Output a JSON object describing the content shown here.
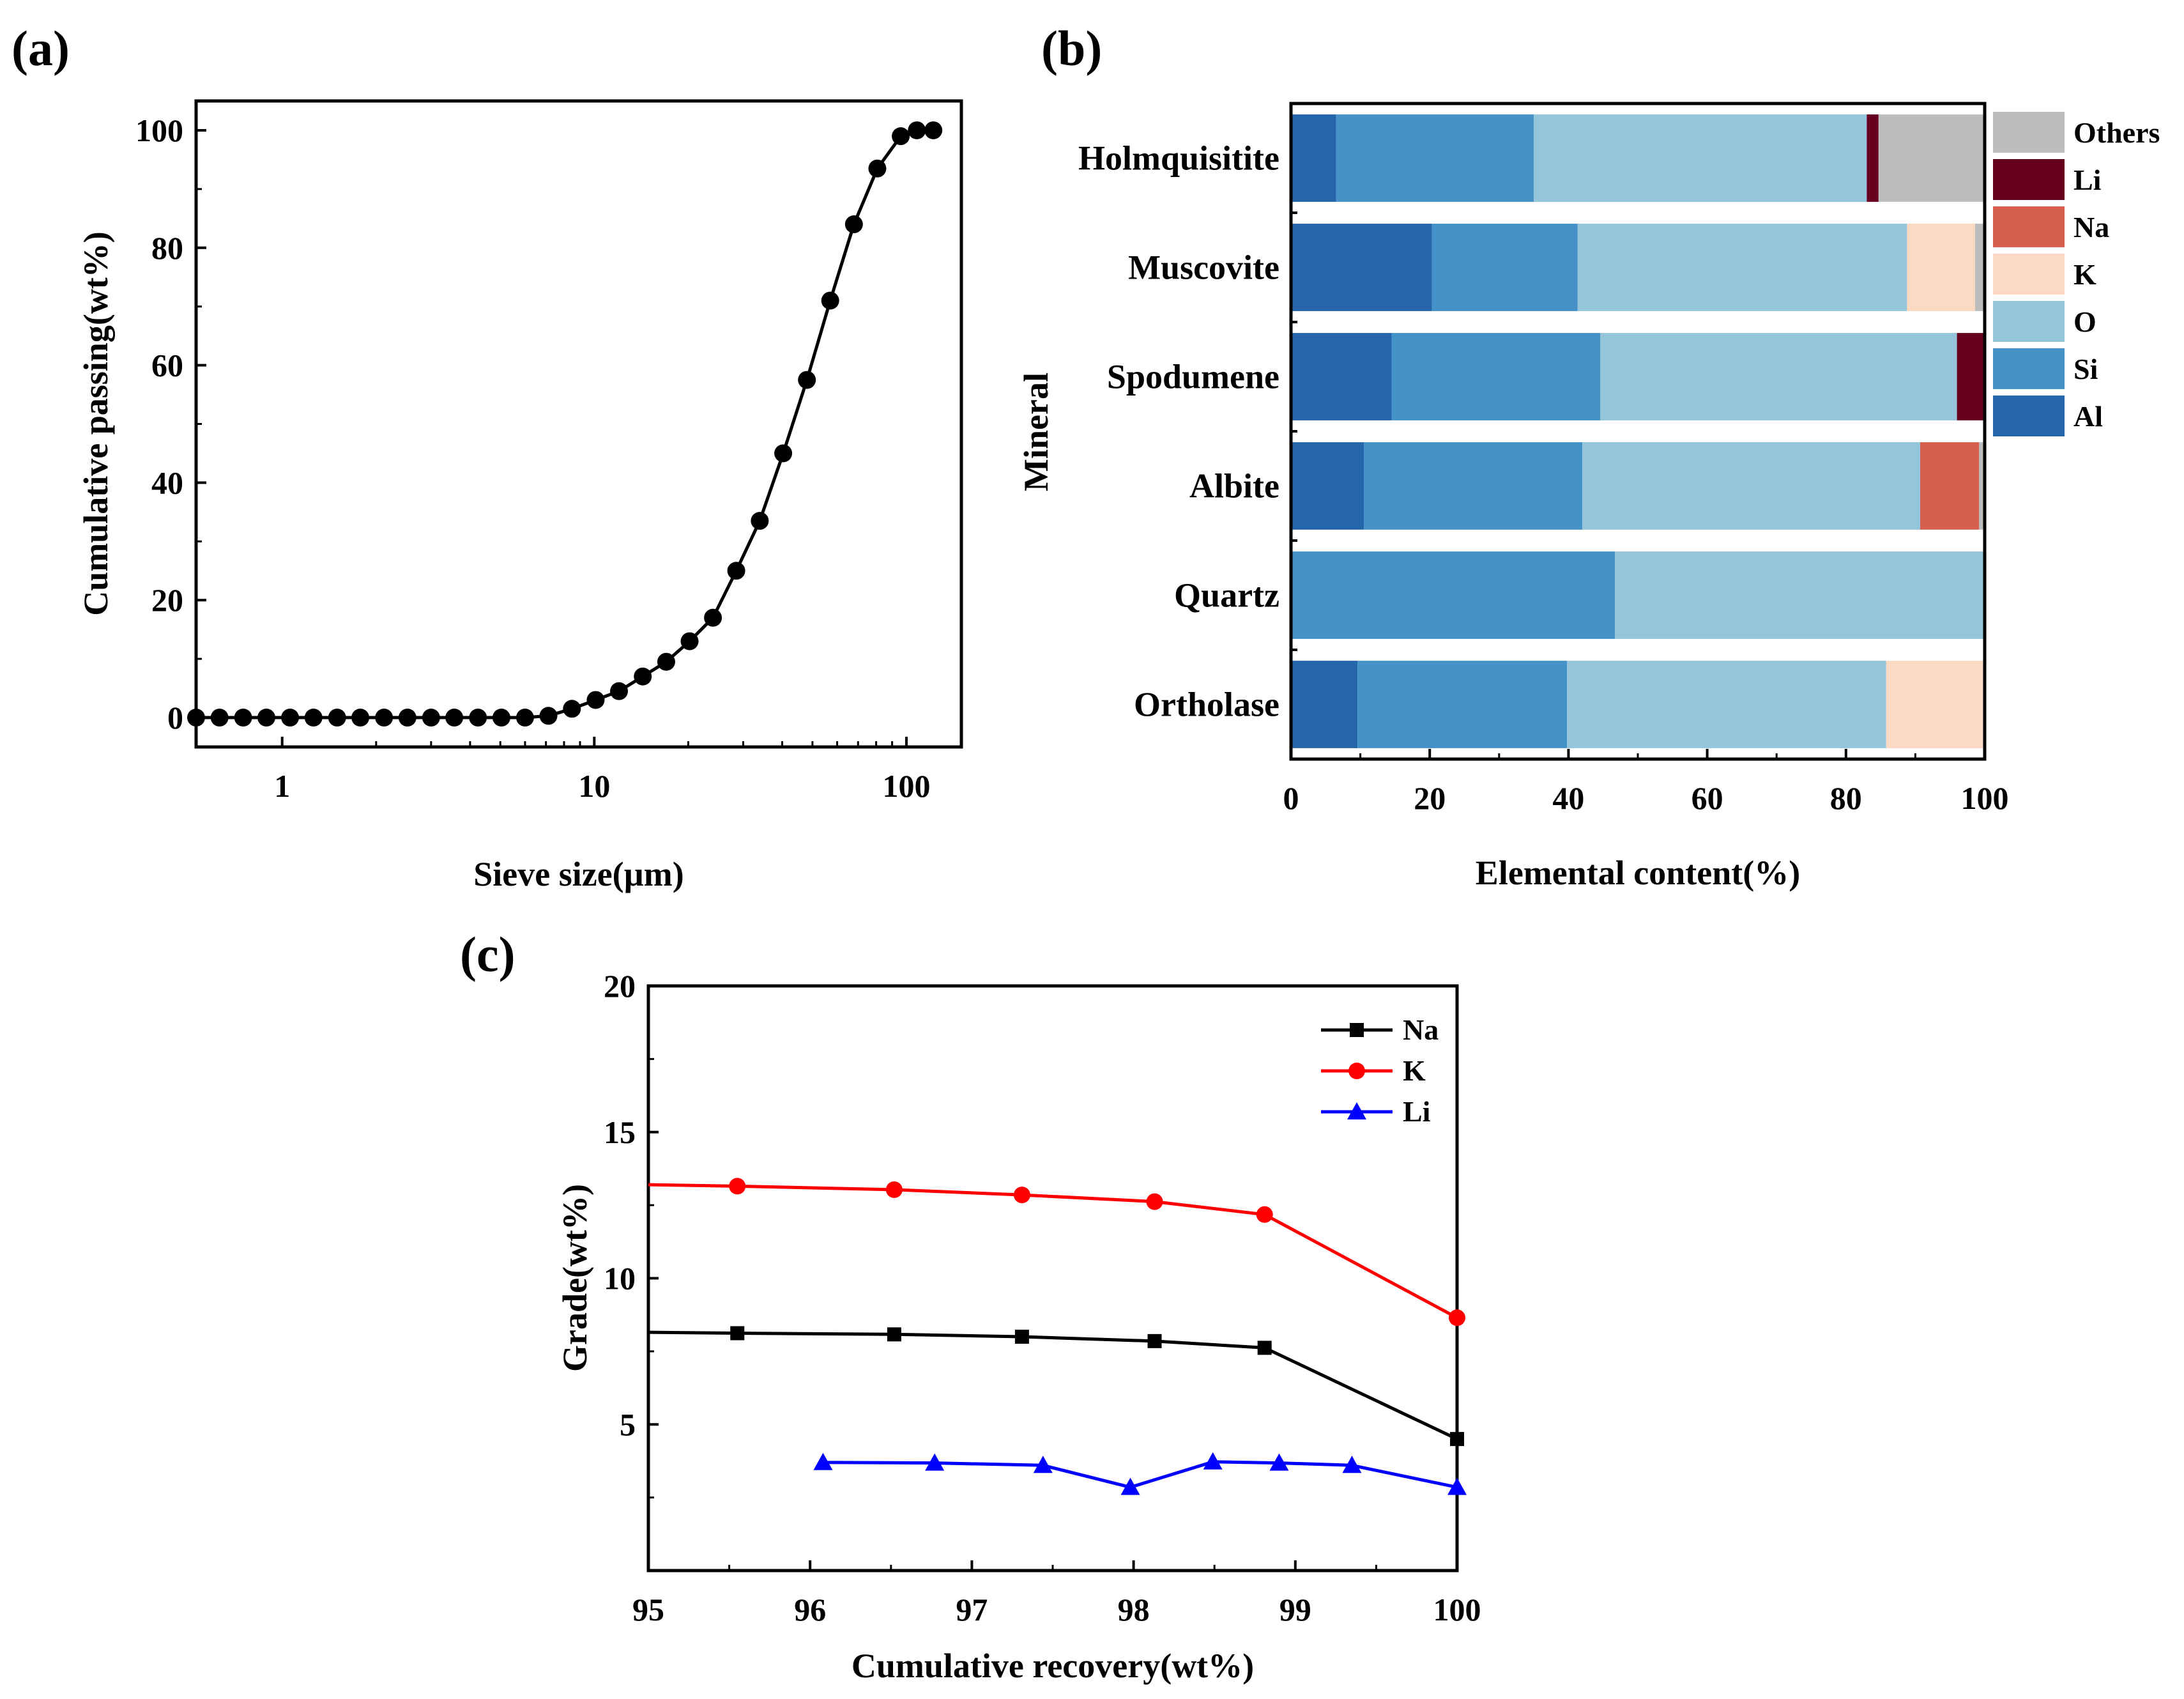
{
  "panels": {
    "a": "(a)",
    "b": "(b)",
    "c": "(c)"
  },
  "chart_data": [
    {
      "id": "a",
      "type": "line",
      "xscale": "log",
      "title": "",
      "xlabel": "Sieve size(µm)",
      "ylabel": "Cumulative passing(wt%)",
      "xlim": [
        0.53,
        150
      ],
      "ylim": [
        -5,
        105
      ],
      "xticks": [
        1,
        10,
        100
      ],
      "xtick_labels": [
        "1",
        "10",
        "100"
      ],
      "yticks": [
        0,
        20,
        40,
        60,
        80,
        100
      ],
      "ytick_labels": [
        "0",
        "20",
        "40",
        "60",
        "80",
        "100"
      ],
      "color": "#000000",
      "x": [
        0.53,
        0.63,
        0.75,
        0.89,
        1.06,
        1.26,
        1.5,
        1.78,
        2.12,
        2.52,
        3.0,
        3.56,
        4.24,
        5.04,
        6.0,
        7.13,
        8.48,
        10.1,
        12.0,
        14.3,
        17.0,
        20.2,
        24.0,
        28.5,
        33.9,
        40.3,
        48.0,
        57.0,
        67.9,
        80.7,
        95.9,
        108,
        122
      ],
      "y": [
        0,
        0,
        0,
        0,
        0,
        0,
        0,
        0,
        0,
        0,
        0,
        0,
        0,
        0,
        0,
        0.3,
        1.5,
        3,
        4.5,
        7,
        9.5,
        13,
        17,
        25,
        33.5,
        45,
        57.5,
        71,
        84,
        93.5,
        99,
        100,
        100
      ]
    },
    {
      "id": "b",
      "type": "bar",
      "orientation": "horizontal",
      "stacked": true,
      "title": "",
      "xlabel": "Elemental content(%)",
      "ylabel": "Mineral",
      "xlim": [
        0,
        100
      ],
      "xticks": [
        0,
        20,
        40,
        60,
        80,
        100
      ],
      "xtick_labels": [
        "0",
        "20",
        "40",
        "60",
        "80",
        "100"
      ],
      "categories": [
        "Holmquisitite",
        "Muscovite",
        "Spodumene",
        "Albite",
        "Quartz",
        "Ortholase"
      ],
      "legend_position": "top-right outside",
      "legend_order": [
        "Others",
        "Li",
        "Na",
        "K",
        "O",
        "Si",
        "Al"
      ],
      "series": [
        {
          "name": "Al",
          "color": "#2565aa",
          "values": [
            6.5,
            20.3,
            14.5,
            10.5,
            0,
            9.6
          ]
        },
        {
          "name": "Si",
          "color": "#4592c8",
          "values": [
            28.5,
            21,
            30.1,
            31.5,
            46.7,
            30.2
          ]
        },
        {
          "name": "O",
          "color": "#94c5db",
          "values": [
            48,
            47.5,
            51.4,
            48.7,
            53.3,
            46
          ]
        },
        {
          "name": "K",
          "color": "#fbd9c3",
          "values": [
            0,
            9.8,
            0,
            0,
            0,
            14.2
          ]
        },
        {
          "name": "Na",
          "color": "#d6604d",
          "values": [
            0,
            0,
            0,
            8.5,
            0,
            0
          ]
        },
        {
          "name": "Li",
          "color": "#67001f",
          "values": [
            1.7,
            0,
            4,
            0,
            0,
            0
          ]
        },
        {
          "name": "Others",
          "color": "#bdbdbd",
          "values": [
            15.3,
            1.4,
            0,
            0.8,
            0,
            0
          ]
        }
      ]
    },
    {
      "id": "c",
      "type": "line",
      "title": "",
      "xlabel": "Cumulative recovery(wt%)",
      "ylabel": "Grade(wt%)",
      "xlim": [
        95,
        100
      ],
      "ylim": [
        0,
        20
      ],
      "xticks": [
        95,
        96,
        97,
        98,
        99,
        100
      ],
      "xtick_labels": [
        "95",
        "96",
        "97",
        "98",
        "99",
        "100"
      ],
      "yticks": [
        5,
        10,
        15,
        20
      ],
      "ytick_labels": [
        "5",
        "10",
        "15",
        "20"
      ],
      "legend_position": "top-right",
      "series": [
        {
          "name": "Na",
          "color": "#000000",
          "marker": "square",
          "x": [
            95,
            95.55,
            96.52,
            97.31,
            98.13,
            98.81,
            100
          ],
          "y": [
            8.15,
            8.12,
            8.08,
            8.0,
            7.85,
            7.62,
            4.5
          ],
          "marker_start": 1
        },
        {
          "name": "K",
          "color": "#ff0000",
          "marker": "circle",
          "x": [
            95,
            95.55,
            96.52,
            97.31,
            98.13,
            98.81,
            100
          ],
          "y": [
            13.2,
            13.15,
            13.03,
            12.85,
            12.62,
            12.18,
            8.65
          ],
          "marker_start": 1
        },
        {
          "name": "Li",
          "color": "#0000ff",
          "marker": "triangle",
          "x": [
            96.08,
            96.77,
            97.44,
            97.98,
            98.49,
            98.9,
            99.35,
            100
          ],
          "y": [
            3.7,
            3.68,
            3.6,
            2.85,
            3.72,
            3.68,
            3.6,
            2.85
          ],
          "marker_start": 0
        }
      ]
    }
  ]
}
